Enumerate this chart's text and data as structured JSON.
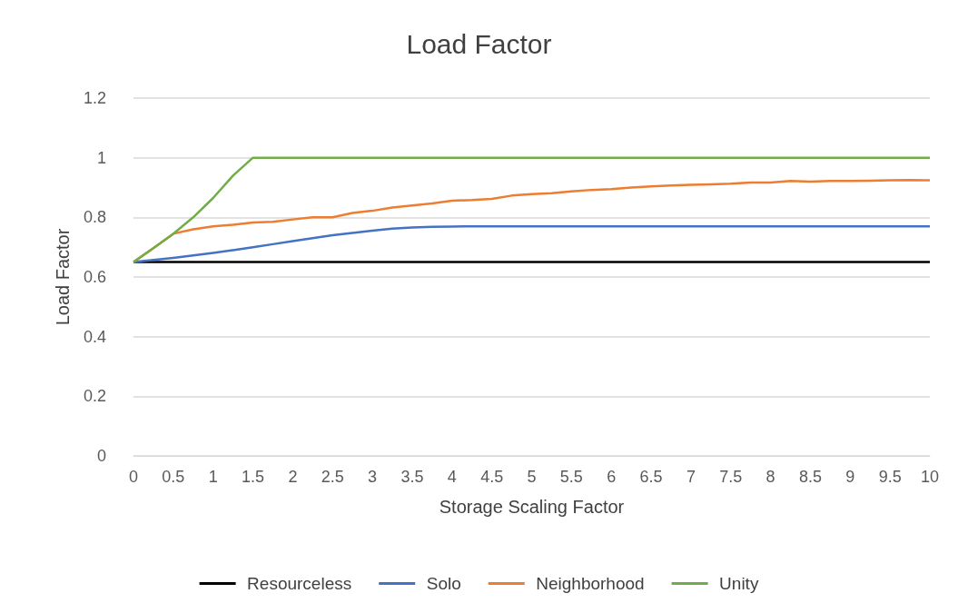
{
  "chart_data": {
    "type": "line",
    "title": "Load Factor",
    "xlabel": "Storage Scaling Factor",
    "ylabel": "Load Factor",
    "x": [
      0,
      0.25,
      0.5,
      0.75,
      1,
      1.25,
      1.5,
      1.75,
      2,
      2.25,
      2.5,
      2.75,
      3,
      3.25,
      3.5,
      3.75,
      4,
      4.25,
      4.5,
      4.75,
      5,
      5.25,
      5.5,
      5.75,
      6,
      6.25,
      6.5,
      6.75,
      7,
      7.25,
      7.5,
      7.75,
      8,
      8.25,
      8.5,
      8.75,
      9,
      9.25,
      9.5,
      9.75,
      10
    ],
    "series": [
      {
        "name": "Resourceless",
        "color": "#000000",
        "values": [
          0.65,
          0.65,
          0.65,
          0.65,
          0.65,
          0.65,
          0.65,
          0.65,
          0.65,
          0.65,
          0.65,
          0.65,
          0.65,
          0.65,
          0.65,
          0.65,
          0.65,
          0.65,
          0.65,
          0.65,
          0.65,
          0.65,
          0.65,
          0.65,
          0.65,
          0.65,
          0.65,
          0.65,
          0.65,
          0.65,
          0.65,
          0.65,
          0.65,
          0.65,
          0.65,
          0.65,
          0.65,
          0.65,
          0.65,
          0.65,
          0.65
        ]
      },
      {
        "name": "Solo",
        "color": "#4472c4",
        "values": [
          0.65,
          0.657,
          0.664,
          0.672,
          0.681,
          0.69,
          0.7,
          0.71,
          0.72,
          0.73,
          0.74,
          0.748,
          0.755,
          0.762,
          0.766,
          0.768,
          0.769,
          0.77,
          0.77,
          0.77,
          0.77,
          0.77,
          0.77,
          0.77,
          0.77,
          0.77,
          0.77,
          0.77,
          0.77,
          0.77,
          0.77,
          0.77,
          0.77,
          0.77,
          0.77,
          0.77,
          0.77,
          0.77,
          0.77,
          0.77,
          0.77
        ]
      },
      {
        "name": "Neighborhood",
        "color": "#ed7d31",
        "values": [
          0.65,
          0.697,
          0.745,
          0.76,
          0.77,
          0.775,
          0.783,
          0.785,
          0.793,
          0.8,
          0.8,
          0.815,
          0.822,
          0.833,
          0.84,
          0.847,
          0.856,
          0.858,
          0.862,
          0.873,
          0.878,
          0.881,
          0.887,
          0.892,
          0.895,
          0.9,
          0.904,
          0.907,
          0.909,
          0.911,
          0.913,
          0.917,
          0.917,
          0.922,
          0.92,
          0.922,
          0.922,
          0.923,
          0.924,
          0.925,
          0.924
        ]
      },
      {
        "name": "Unity",
        "color": "#70ad47",
        "values": [
          0.65,
          0.697,
          0.745,
          0.8,
          0.865,
          0.94,
          1,
          1,
          1,
          1,
          1,
          1,
          1,
          1,
          1,
          1,
          1,
          1,
          1,
          1,
          1,
          1,
          1,
          1,
          1,
          1,
          1,
          1,
          1,
          1,
          1,
          1,
          1,
          1,
          1,
          1,
          1,
          1,
          1,
          1,
          1
        ]
      }
    ],
    "xlim": [
      0,
      10
    ],
    "xticks": [
      0,
      0.5,
      1,
      1.5,
      2,
      2.5,
      3,
      3.5,
      4,
      4.5,
      5,
      5.5,
      6,
      6.5,
      7,
      7.5,
      8,
      8.5,
      9,
      9.5,
      10
    ],
    "ylim": [
      0,
      1.2
    ],
    "yticks": [
      0,
      0.2,
      0.4,
      0.6,
      0.8,
      1,
      1.2
    ],
    "grid": "y",
    "legend": "bottom",
    "marker": "none",
    "line_style": "solid"
  }
}
